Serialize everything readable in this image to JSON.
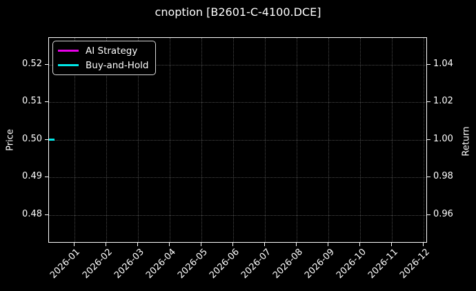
{
  "title": "cnoption [B2601-C-4100.DCE]",
  "legend": {
    "position": "upper left",
    "items": [
      {
        "label": "AI Strategy",
        "color": "#e800e8"
      },
      {
        "label": "Buy-and-Hold",
        "color": "#00e8e8"
      }
    ]
  },
  "colors": {
    "background": "#000000",
    "text": "#ffffff",
    "grid": "#4a4a4a",
    "spine": "#ffffff"
  },
  "chart_data": {
    "type": "line",
    "title": "cnoption [B2601-C-4100.DCE]",
    "grid": {
      "show": true,
      "style": "dotted"
    },
    "legend_position": "upper left",
    "x_axis": {
      "unit": "months since 2026-01",
      "xlim": [
        -0.8,
        11.13
      ],
      "tick_values": [
        0,
        1,
        2,
        3,
        4,
        5,
        6,
        7,
        8,
        9,
        10,
        11
      ],
      "tick_labels": [
        "2026-01",
        "2026-02",
        "2026-03",
        "2026-04",
        "2026-05",
        "2026-06",
        "2026-07",
        "2026-08",
        "2026-09",
        "2026-10",
        "2026-11",
        "2026-12"
      ],
      "tick_rotation_deg": 45
    },
    "y_left": {
      "label": "Price",
      "ylim": [
        0.4725,
        0.5271
      ],
      "tick_values": [
        0.48,
        0.49,
        0.5,
        0.51,
        0.52
      ],
      "tick_labels": [
        "0.48",
        "0.49",
        "0.50",
        "0.51",
        "0.52"
      ]
    },
    "y_right": {
      "label": "Return",
      "ylim": [
        0.945,
        1.0542
      ],
      "tick_values": [
        0.96,
        0.98,
        1.0,
        1.02,
        1.04
      ],
      "tick_labels": [
        "0.96",
        "0.98",
        "1.00",
        "1.02",
        "1.04"
      ]
    },
    "series": [
      {
        "name": "AI Strategy",
        "color": "#e800e8",
        "axis": "right",
        "x": [
          -0.8,
          -0.63
        ],
        "values": [
          1.0,
          1.0
        ],
        "note": "flat segment at far left; coincides with and is hidden beneath Buy-and-Hold"
      },
      {
        "name": "Buy-and-Hold",
        "color": "#00e8e8",
        "axis": "right",
        "x": [
          -0.8,
          -0.63
        ],
        "values": [
          1.0,
          1.0
        ],
        "price_values": [
          0.5,
          0.5
        ],
        "note": "short flat segment at far left edge: return 1.00 / price 0.50"
      }
    ]
  }
}
